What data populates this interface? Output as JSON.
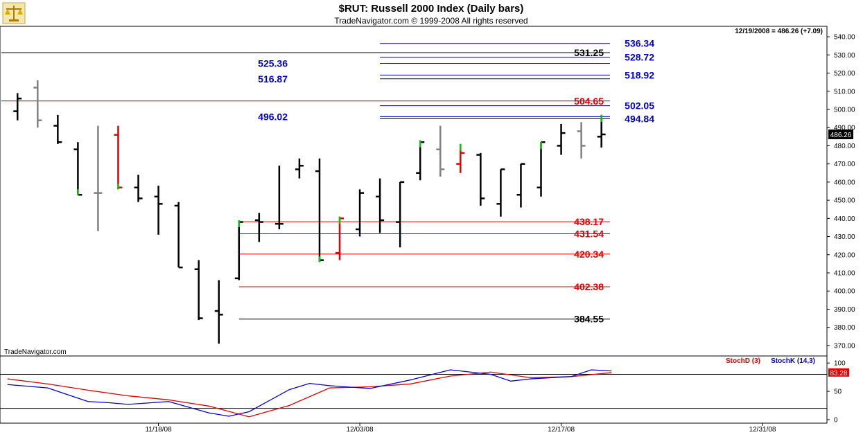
{
  "header": {
    "title": "$RUT:  Russell 2000 Index  (Daily bars)",
    "copyright": "TradeNavigator.com © 1999-2008 All rights reserved",
    "last_quote": "12/19/2008 = 486.26 (+7.09)",
    "watermark": "TradeNavigator.com"
  },
  "logo": {
    "icon": "scales-logo-icon"
  },
  "colors": {
    "bull_up": "#000000",
    "gray_bar": "#808080",
    "red_bar": "#e00000",
    "green_tick": "#00cc00",
    "support_red": "#e00000",
    "resistance_blue": "#0000cc",
    "stoch_d": "#e00000",
    "stoch_k": "#0000cc"
  },
  "chart_data": [
    {
      "type": "ohlc",
      "title": "$RUT:  Russell 2000 Index  (Daily bars)",
      "ylim": [
        365,
        545
      ],
      "y_ticks": [
        "540.00",
        "530.00",
        "520.00",
        "510.00",
        "500.00",
        "490.00",
        "480.00",
        "470.00",
        "460.00",
        "450.00",
        "440.00",
        "430.00",
        "420.00",
        "410.00",
        "400.00",
        "390.00",
        "380.00",
        "370.00"
      ],
      "y_tick_values": [
        540,
        530,
        520,
        510,
        500,
        490,
        480,
        470,
        460,
        450,
        440,
        430,
        420,
        410,
        400,
        390,
        380,
        370
      ],
      "x_tick_labels": [
        "11/18/08",
        "12/03/08",
        "12/17/08",
        "12/31/08"
      ],
      "x_tick_index": [
        7,
        17,
        27,
        37
      ],
      "x_range": [
        -0.8,
        40.2
      ],
      "last_price_label": "486.26",
      "last_price": 486.26,
      "bars": [
        {
          "o": 499,
          "h": 509,
          "l": 494,
          "c": 506,
          "col": "black"
        },
        {
          "o": 512,
          "h": 516,
          "l": 490,
          "c": 494,
          "col": "gray"
        },
        {
          "o": 491,
          "h": 497,
          "l": 481,
          "c": 482,
          "col": "black"
        },
        {
          "o": 478,
          "h": 482,
          "l": 453,
          "c": 453,
          "col": "black",
          "tick": "green"
        },
        {
          "o": 454,
          "h": 491,
          "l": 433,
          "c": 454,
          "col": "gray"
        },
        {
          "o": 486,
          "h": 491,
          "l": 456,
          "c": 457,
          "col": "red",
          "tick": "green"
        },
        {
          "o": 457,
          "h": 464,
          "l": 449,
          "c": 451,
          "col": "black"
        },
        {
          "o": 452,
          "h": 458,
          "l": 431,
          "c": 448,
          "col": "black"
        },
        {
          "o": 447,
          "h": 449,
          "l": 413,
          "c": 413,
          "col": "black"
        },
        {
          "o": 412,
          "h": 417,
          "l": 384,
          "c": 385,
          "col": "black"
        },
        {
          "o": 389,
          "h": 406,
          "l": 371,
          "c": 387,
          "col": "black"
        },
        {
          "o": 407,
          "h": 439,
          "l": 406,
          "c": 438,
          "col": "black",
          "tick": "green"
        },
        {
          "o": 439,
          "h": 443,
          "l": 427,
          "c": 438,
          "col": "black"
        },
        {
          "o": 437,
          "h": 469,
          "l": 434,
          "c": 437,
          "col": "black"
        },
        {
          "o": 467,
          "h": 473,
          "l": 462,
          "c": 469,
          "col": "black"
        },
        {
          "o": 466,
          "h": 473,
          "l": 416,
          "c": 417,
          "col": "black",
          "tick": "green"
        },
        {
          "o": 421,
          "h": 441,
          "l": 417,
          "c": 440,
          "col": "red",
          "tick": "green"
        },
        {
          "o": 434,
          "h": 456,
          "l": 430,
          "c": 454,
          "col": "black"
        },
        {
          "o": 452,
          "h": 462,
          "l": 432,
          "c": 439,
          "col": "black"
        },
        {
          "o": 438,
          "h": 460,
          "l": 424,
          "c": 460,
          "col": "black"
        },
        {
          "o": 465,
          "h": 483,
          "l": 461,
          "c": 482,
          "col": "black",
          "tick": "green"
        },
        {
          "o": 478,
          "h": 491,
          "l": 463,
          "c": 467,
          "col": "gray"
        },
        {
          "o": 470,
          "h": 481,
          "l": 465,
          "c": 476,
          "col": "red",
          "tick": "green"
        },
        {
          "o": 475,
          "h": 476,
          "l": 447,
          "c": 451,
          "col": "black"
        },
        {
          "o": 448,
          "h": 467,
          "l": 441,
          "c": 467,
          "col": "black"
        },
        {
          "o": 453,
          "h": 470,
          "l": 446,
          "c": 470,
          "col": "black"
        },
        {
          "o": 457,
          "h": 482,
          "l": 452,
          "c": 482,
          "col": "black",
          "tick": "green"
        },
        {
          "o": 480,
          "h": 492,
          "l": 475,
          "c": 487,
          "col": "black"
        },
        {
          "o": 488,
          "h": 493,
          "l": 473,
          "c": 480,
          "col": "gray"
        },
        {
          "o": 485,
          "h": 497,
          "l": 479,
          "c": 486.26,
          "col": "black",
          "tick": "green"
        }
      ],
      "levels": [
        {
          "label": "536.34",
          "value": 536.34,
          "color": "blue",
          "x_start": 18,
          "label_side": "right"
        },
        {
          "label": "531.25",
          "value": 531.25,
          "color": "black",
          "x_start": -0.8,
          "label_side": "mid"
        },
        {
          "label": "528.72",
          "value": 528.72,
          "color": "blue",
          "x_start": 18,
          "label_side": "right"
        },
        {
          "label": "525.36",
          "value": 525.36,
          "color": "blue",
          "x_start": 18,
          "label_side": "left"
        },
        {
          "label": "518.92",
          "value": 518.92,
          "color": "blue",
          "x_start": 18,
          "label_side": "right"
        },
        {
          "label": "516.87",
          "value": 516.87,
          "color": "blue",
          "x_start": 18,
          "label_side": "left"
        },
        {
          "label": "504.65",
          "value": 504.65,
          "color": "red",
          "x_start": -0.8,
          "label_side": "mid"
        },
        {
          "label": "502.05",
          "value": 502.05,
          "color": "blue",
          "x_start": 18,
          "label_side": "right"
        },
        {
          "label": "496.02",
          "value": 496.02,
          "color": "blue",
          "x_start": 18,
          "label_side": "left"
        },
        {
          "label": "494.84",
          "value": 494.84,
          "color": "blue",
          "x_start": 18,
          "label_side": "right"
        },
        {
          "label": "438.17",
          "value": 438.17,
          "color": "red",
          "x_start": 11,
          "label_side": "mid"
        },
        {
          "label": "431.54",
          "value": 431.54,
          "color": "red",
          "x_start": 11,
          "label_side": "mid"
        },
        {
          "label": "420.34",
          "value": 420.34,
          "color": "red",
          "x_start": 11,
          "label_side": "mid"
        },
        {
          "label": "402.38",
          "value": 402.38,
          "color": "red",
          "x_start": 11,
          "label_side": "mid"
        },
        {
          "label": "384.55",
          "value": 384.55,
          "color": "black",
          "x_start": 11,
          "label_side": "mid"
        }
      ]
    },
    {
      "type": "line",
      "legend": [
        "StochD (3)",
        "StochK (14,3)"
      ],
      "ylim": [
        -5,
        110
      ],
      "y_ticks": [
        "100",
        "50",
        "0"
      ],
      "y_tick_values": [
        100,
        50,
        0
      ],
      "ref_lines": [
        80,
        20
      ],
      "last_value_label": "83.28",
      "last_value": 83.28,
      "series": [
        {
          "name": "StochD (3)",
          "color": "red",
          "x": [
            -0.5,
            1.5,
            3.5,
            5.5,
            7.5,
            9.5,
            11.5,
            13.5,
            15.5,
            17.5,
            19.5,
            21.5,
            23.5,
            25.5,
            27.5,
            29.5
          ],
          "values": [
            72,
            63,
            52,
            42,
            35,
            24,
            5,
            25,
            56,
            58,
            63,
            77,
            84,
            74,
            76,
            83
          ]
        },
        {
          "name": "StochK (14,3)",
          "color": "blue",
          "x": [
            -0.5,
            1.5,
            2.5,
            3.5,
            4.5,
            5.5,
            7.5,
            9.5,
            10.5,
            11.5,
            13.5,
            14.5,
            15.5,
            17.5,
            19.5,
            21.5,
            23.5,
            24.5,
            25.5,
            27.5,
            28.5,
            29.5
          ],
          "values": [
            62,
            56,
            44,
            32,
            30,
            27,
            32,
            12,
            6,
            14,
            53,
            64,
            60,
            55,
            70,
            88,
            80,
            68,
            72,
            76,
            88,
            86
          ]
        }
      ]
    }
  ]
}
